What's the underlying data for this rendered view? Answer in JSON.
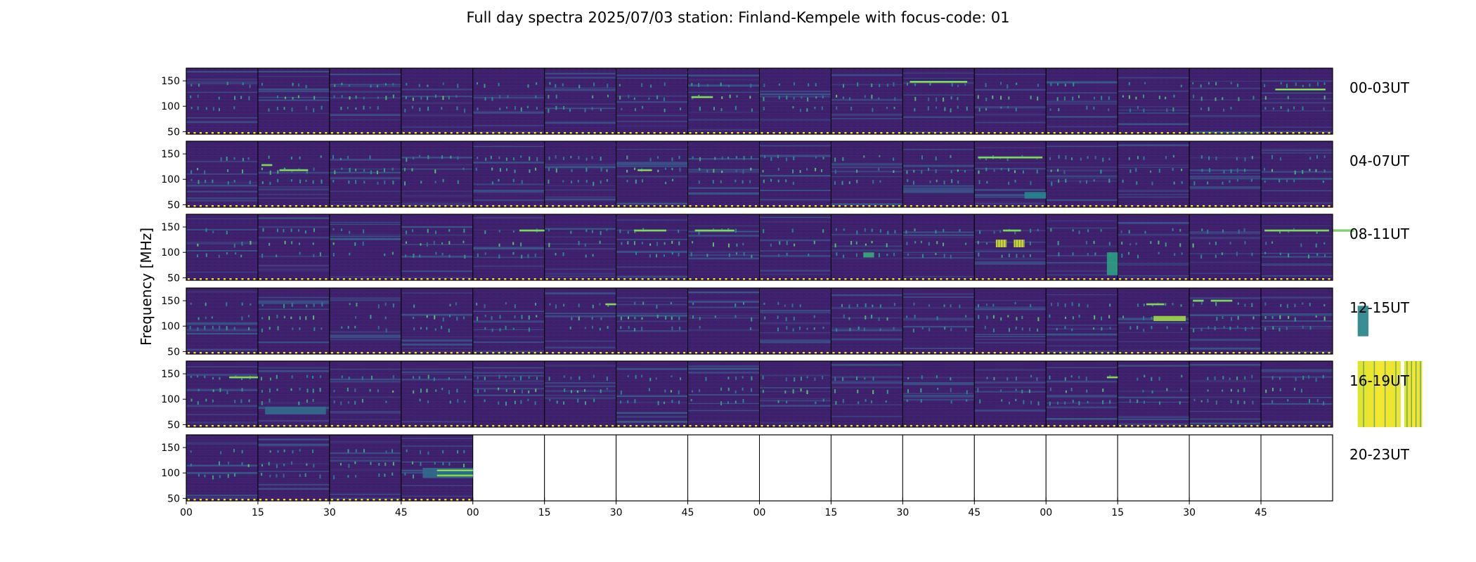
{
  "chart_data": {
    "type": "heatmap",
    "title": "Full day spectra 2025/07/03 station: Finland-Kempele with focus-code: 01",
    "ylabel": "Frequency [MHz]",
    "xlabel": "",
    "ylim": [
      45,
      175
    ],
    "y_ticks": [
      50,
      100,
      150
    ],
    "x_tick_labels": [
      "00",
      "15",
      "30",
      "45",
      "00",
      "15",
      "30",
      "45",
      "00",
      "15",
      "30",
      "45",
      "00",
      "15",
      "30",
      "45"
    ],
    "colormap": "viridis",
    "colors": {
      "background_low": "#3e1f6b",
      "medium": "#2e6f8e",
      "high": "#35b779",
      "saturated": "#f0e51e",
      "calibration_marks": "#fde725"
    },
    "panels": [
      {
        "label": "00-03UT",
        "strong_lines": [
          {
            "tile": 7,
            "freq": 118,
            "from": 0.05,
            "to": 0.35
          },
          {
            "tile": 10,
            "freq": 148,
            "from": 0.1,
            "to": 0.9
          },
          {
            "tile": 15,
            "freq": 133,
            "from": 0.2,
            "to": 0.9
          }
        ],
        "bursts": [],
        "blank_tiles": []
      },
      {
        "label": "04-07UT",
        "strong_lines": [
          {
            "tile": 1,
            "freq": 128,
            "from": 0.05,
            "to": 0.2
          },
          {
            "tile": 1,
            "freq": 118,
            "from": 0.3,
            "to": 0.7
          },
          {
            "tile": 11,
            "freq": 143,
            "from": 0.05,
            "to": 0.95
          },
          {
            "tile": 6,
            "freq": 118,
            "from": 0.3,
            "to": 0.5
          }
        ],
        "bursts": [
          {
            "tile": 11,
            "f0": 62,
            "f1": 75,
            "from": 0.7,
            "to": 1.0,
            "level": 0.45
          }
        ],
        "blank_tiles": []
      },
      {
        "label": "08-11UT",
        "strong_lines": [
          {
            "tile": 4,
            "freq": 143,
            "from": 0.65,
            "to": 1.0
          },
          {
            "tile": 6,
            "freq": 143,
            "from": 0.25,
            "to": 0.7
          },
          {
            "tile": 7,
            "freq": 143,
            "from": 0.1,
            "to": 0.65
          },
          {
            "tile": 11,
            "freq": 143,
            "from": 0.4,
            "to": 0.65
          },
          {
            "tile": 15,
            "freq": 143,
            "from": 0.05,
            "to": 0.95
          },
          {
            "tile": 16,
            "freq": 143,
            "from": 0.0,
            "to": 0.3
          }
        ],
        "bursts": [
          {
            "tile": 11,
            "f0": 110,
            "f1": 125,
            "from": 0.3,
            "to": 0.45,
            "level": 0.95
          },
          {
            "tile": 11,
            "f0": 110,
            "f1": 125,
            "from": 0.55,
            "to": 0.7,
            "level": 0.95
          },
          {
            "tile": 12,
            "f0": 55,
            "f1": 100,
            "from": 0.85,
            "to": 1.0,
            "level": 0.55
          },
          {
            "tile": 9,
            "f0": 90,
            "f1": 100,
            "from": 0.45,
            "to": 0.6,
            "level": 0.6
          }
        ],
        "blank_tiles": []
      },
      {
        "label": "12-15UT",
        "strong_lines": [
          {
            "tile": 5,
            "freq": 143,
            "from": 0.85,
            "to": 1.0
          },
          {
            "tile": 13,
            "freq": 143,
            "from": 0.4,
            "to": 0.65
          },
          {
            "tile": 14,
            "freq": 150,
            "from": 0.05,
            "to": 0.2
          },
          {
            "tile": 14,
            "freq": 150,
            "from": 0.3,
            "to": 0.6
          }
        ],
        "bursts": [
          {
            "tile": 13,
            "f0": 110,
            "f1": 120,
            "from": 0.5,
            "to": 0.95,
            "level": 0.85
          },
          {
            "tile": 16,
            "f0": 80,
            "f1": 140,
            "from": 0.35,
            "to": 0.5,
            "level": 0.45
          }
        ],
        "blank_tiles": []
      },
      {
        "label": "16-19UT",
        "strong_lines": [
          {
            "tile": 0,
            "freq": 143,
            "from": 0.6,
            "to": 1.0
          },
          {
            "tile": 12,
            "freq": 143,
            "from": 0.85,
            "to": 1.0
          }
        ],
        "bursts": [
          {
            "tile": 16,
            "f0": 45,
            "f1": 175,
            "from": 0.35,
            "to": 0.95,
            "level": 1.0
          },
          {
            "tile": 17,
            "f0": 45,
            "f1": 175,
            "from": 0.0,
            "to": 0.25,
            "level": 0.9
          },
          {
            "tile": 1,
            "f0": 70,
            "f1": 85,
            "from": 0.1,
            "to": 0.95,
            "level": 0.35
          }
        ],
        "blank_tiles": []
      },
      {
        "label": "20-23UT",
        "strong_lines": [
          {
            "tile": 3,
            "freq": 105,
            "from": 0.5,
            "to": 1.0
          },
          {
            "tile": 3,
            "freq": 95,
            "from": 0.5,
            "to": 1.0
          }
        ],
        "bursts": [
          {
            "tile": 3,
            "f0": 90,
            "f1": 110,
            "from": 0.3,
            "to": 1.0,
            "level": 0.35
          }
        ],
        "blank_tiles": [
          4,
          5,
          6,
          7,
          8,
          9,
          10,
          11,
          12,
          13,
          14,
          15
        ]
      }
    ]
  }
}
